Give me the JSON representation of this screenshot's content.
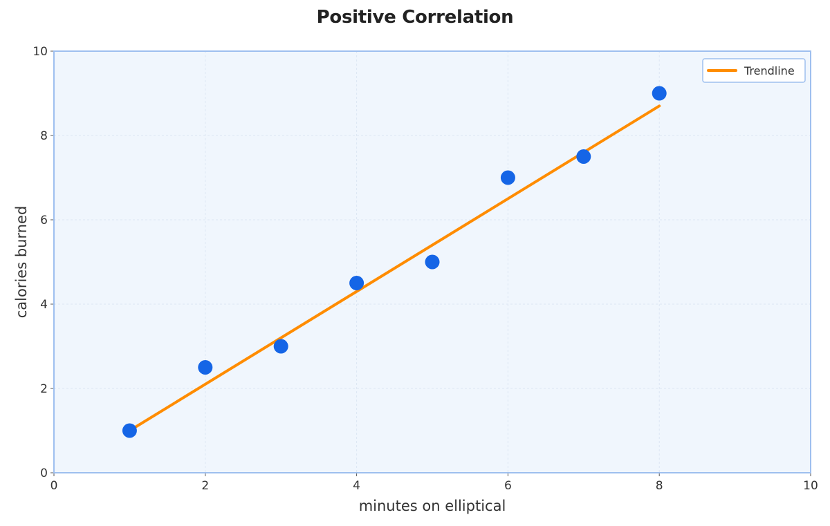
{
  "chart_data": {
    "type": "scatter",
    "title": "Positive Correlation",
    "xlabel": "minutes on elliptical",
    "ylabel": "calories burned",
    "xlim": [
      0,
      10
    ],
    "ylim": [
      0,
      10
    ],
    "xticks": [
      0,
      2,
      4,
      6,
      8,
      10
    ],
    "yticks": [
      0,
      2,
      4,
      6,
      8,
      10
    ],
    "grid": true,
    "legend_position": "top-right",
    "series": [
      {
        "kind": "scatter",
        "color": "#1565e6",
        "points": [
          {
            "x": 1,
            "y": 1
          },
          {
            "x": 2,
            "y": 2.5
          },
          {
            "x": 3,
            "y": 3
          },
          {
            "x": 4,
            "y": 4.5
          },
          {
            "x": 5,
            "y": 5
          },
          {
            "x": 6,
            "y": 7
          },
          {
            "x": 7,
            "y": 7.5
          },
          {
            "x": 8,
            "y": 9
          }
        ]
      },
      {
        "kind": "line",
        "name": "Trendline",
        "color": "#ff8c00",
        "points": [
          {
            "x": 1,
            "y": 1.0
          },
          {
            "x": 8,
            "y": 8.7
          }
        ]
      }
    ],
    "colors": {
      "plot_background": "#f0f6fd",
      "frame": "#9ebfef",
      "grid": "#dde6f3"
    }
  }
}
